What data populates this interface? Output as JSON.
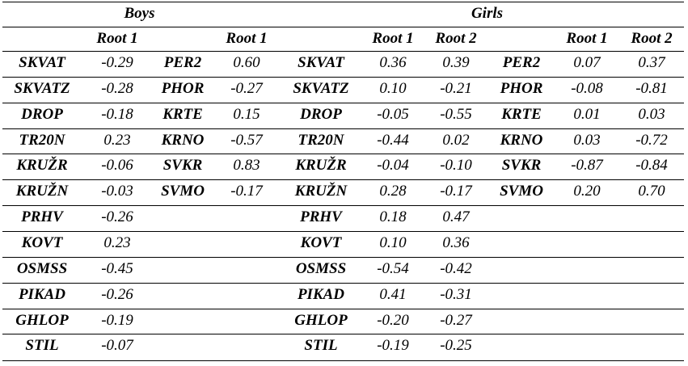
{
  "groups": {
    "boys": "Boys",
    "girls": "Girls"
  },
  "headers": {
    "boys_root1_a": "Root 1",
    "boys_root1_b": "Root 1",
    "girls_a_root1": "Root 1",
    "girls_a_root2": "Root 2",
    "girls_b_root1": "Root 1",
    "girls_b_root2": "Root 2"
  },
  "rows": [
    {
      "b1_var": "SKVAT",
      "b1_r1": "-0.29",
      "b2_var": "PER2",
      "b2_r1": "0.60",
      "g1_var": "SKVAT",
      "g1_r1": "0.36",
      "g1_r2": "0.39",
      "g2_var": "PER2",
      "g2_r1": "0.07",
      "g2_r2": "0.37"
    },
    {
      "b1_var": "SKVATZ",
      "b1_r1": "-0.28",
      "b2_var": "PHOR",
      "b2_r1": "-0.27",
      "g1_var": "SKVATZ",
      "g1_r1": "0.10",
      "g1_r2": "-0.21",
      "g2_var": "PHOR",
      "g2_r1": "-0.08",
      "g2_r2": "-0.81"
    },
    {
      "b1_var": "DROP",
      "b1_r1": "-0.18",
      "b2_var": "KRTE",
      "b2_r1": "0.15",
      "g1_var": "DROP",
      "g1_r1": "-0.05",
      "g1_r2": "-0.55",
      "g2_var": "KRTE",
      "g2_r1": "0.01",
      "g2_r2": "0.03"
    },
    {
      "b1_var": "TR20N",
      "b1_r1": "0.23",
      "b2_var": "KRNO",
      "b2_r1": "-0.57",
      "g1_var": "TR20N",
      "g1_r1": "-0.44",
      "g1_r2": "0.02",
      "g2_var": "KRNO",
      "g2_r1": "0.03",
      "g2_r2": "-0.72"
    },
    {
      "b1_var": "KRUŽR",
      "b1_r1": "-0.06",
      "b2_var": "SVKR",
      "b2_r1": "0.83",
      "g1_var": "KRUŽR",
      "g1_r1": "-0.04",
      "g1_r2": "-0.10",
      "g2_var": "SVKR",
      "g2_r1": "-0.87",
      "g2_r2": "-0.84"
    },
    {
      "b1_var": "KRUŽN",
      "b1_r1": "-0.03",
      "b2_var": "SVMO",
      "b2_r1": "-0.17",
      "g1_var": "KRUŽN",
      "g1_r1": "0.28",
      "g1_r2": "-0.17",
      "g2_var": "SVMO",
      "g2_r1": "0.20",
      "g2_r2": "0.70"
    },
    {
      "b1_var": "PRHV",
      "b1_r1": "-0.26",
      "b2_var": "",
      "b2_r1": "",
      "g1_var": "PRHV",
      "g1_r1": "0.18",
      "g1_r2": "0.47",
      "g2_var": "",
      "g2_r1": "",
      "g2_r2": ""
    },
    {
      "b1_var": "KOVT",
      "b1_r1": "0.23",
      "b2_var": "",
      "b2_r1": "",
      "g1_var": "KOVT",
      "g1_r1": "0.10",
      "g1_r2": "0.36",
      "g2_var": "",
      "g2_r1": "",
      "g2_r2": ""
    },
    {
      "b1_var": "OSMSS",
      "b1_r1": "-0.45",
      "b2_var": "",
      "b2_r1": "",
      "g1_var": "OSMSS",
      "g1_r1": "-0.54",
      "g1_r2": "-0.42",
      "g2_var": "",
      "g2_r1": "",
      "g2_r2": ""
    },
    {
      "b1_var": "PIKAD",
      "b1_r1": "-0.26",
      "b2_var": "",
      "b2_r1": "",
      "g1_var": "PIKAD",
      "g1_r1": "0.41",
      "g1_r2": "-0.31",
      "g2_var": "",
      "g2_r1": "",
      "g2_r2": ""
    },
    {
      "b1_var": "GHLOP",
      "b1_r1": "-0.19",
      "b2_var": "",
      "b2_r1": "",
      "g1_var": "GHLOP",
      "g1_r1": "-0.20",
      "g1_r2": "-0.27",
      "g2_var": "",
      "g2_r1": "",
      "g2_r2": ""
    },
    {
      "b1_var": "STIL",
      "b1_r1": "-0.07",
      "b2_var": "",
      "b2_r1": "",
      "g1_var": "STIL",
      "g1_r1": "-0.19",
      "g1_r2": "-0.25",
      "g2_var": "",
      "g2_r1": "",
      "g2_r2": ""
    }
  ]
}
